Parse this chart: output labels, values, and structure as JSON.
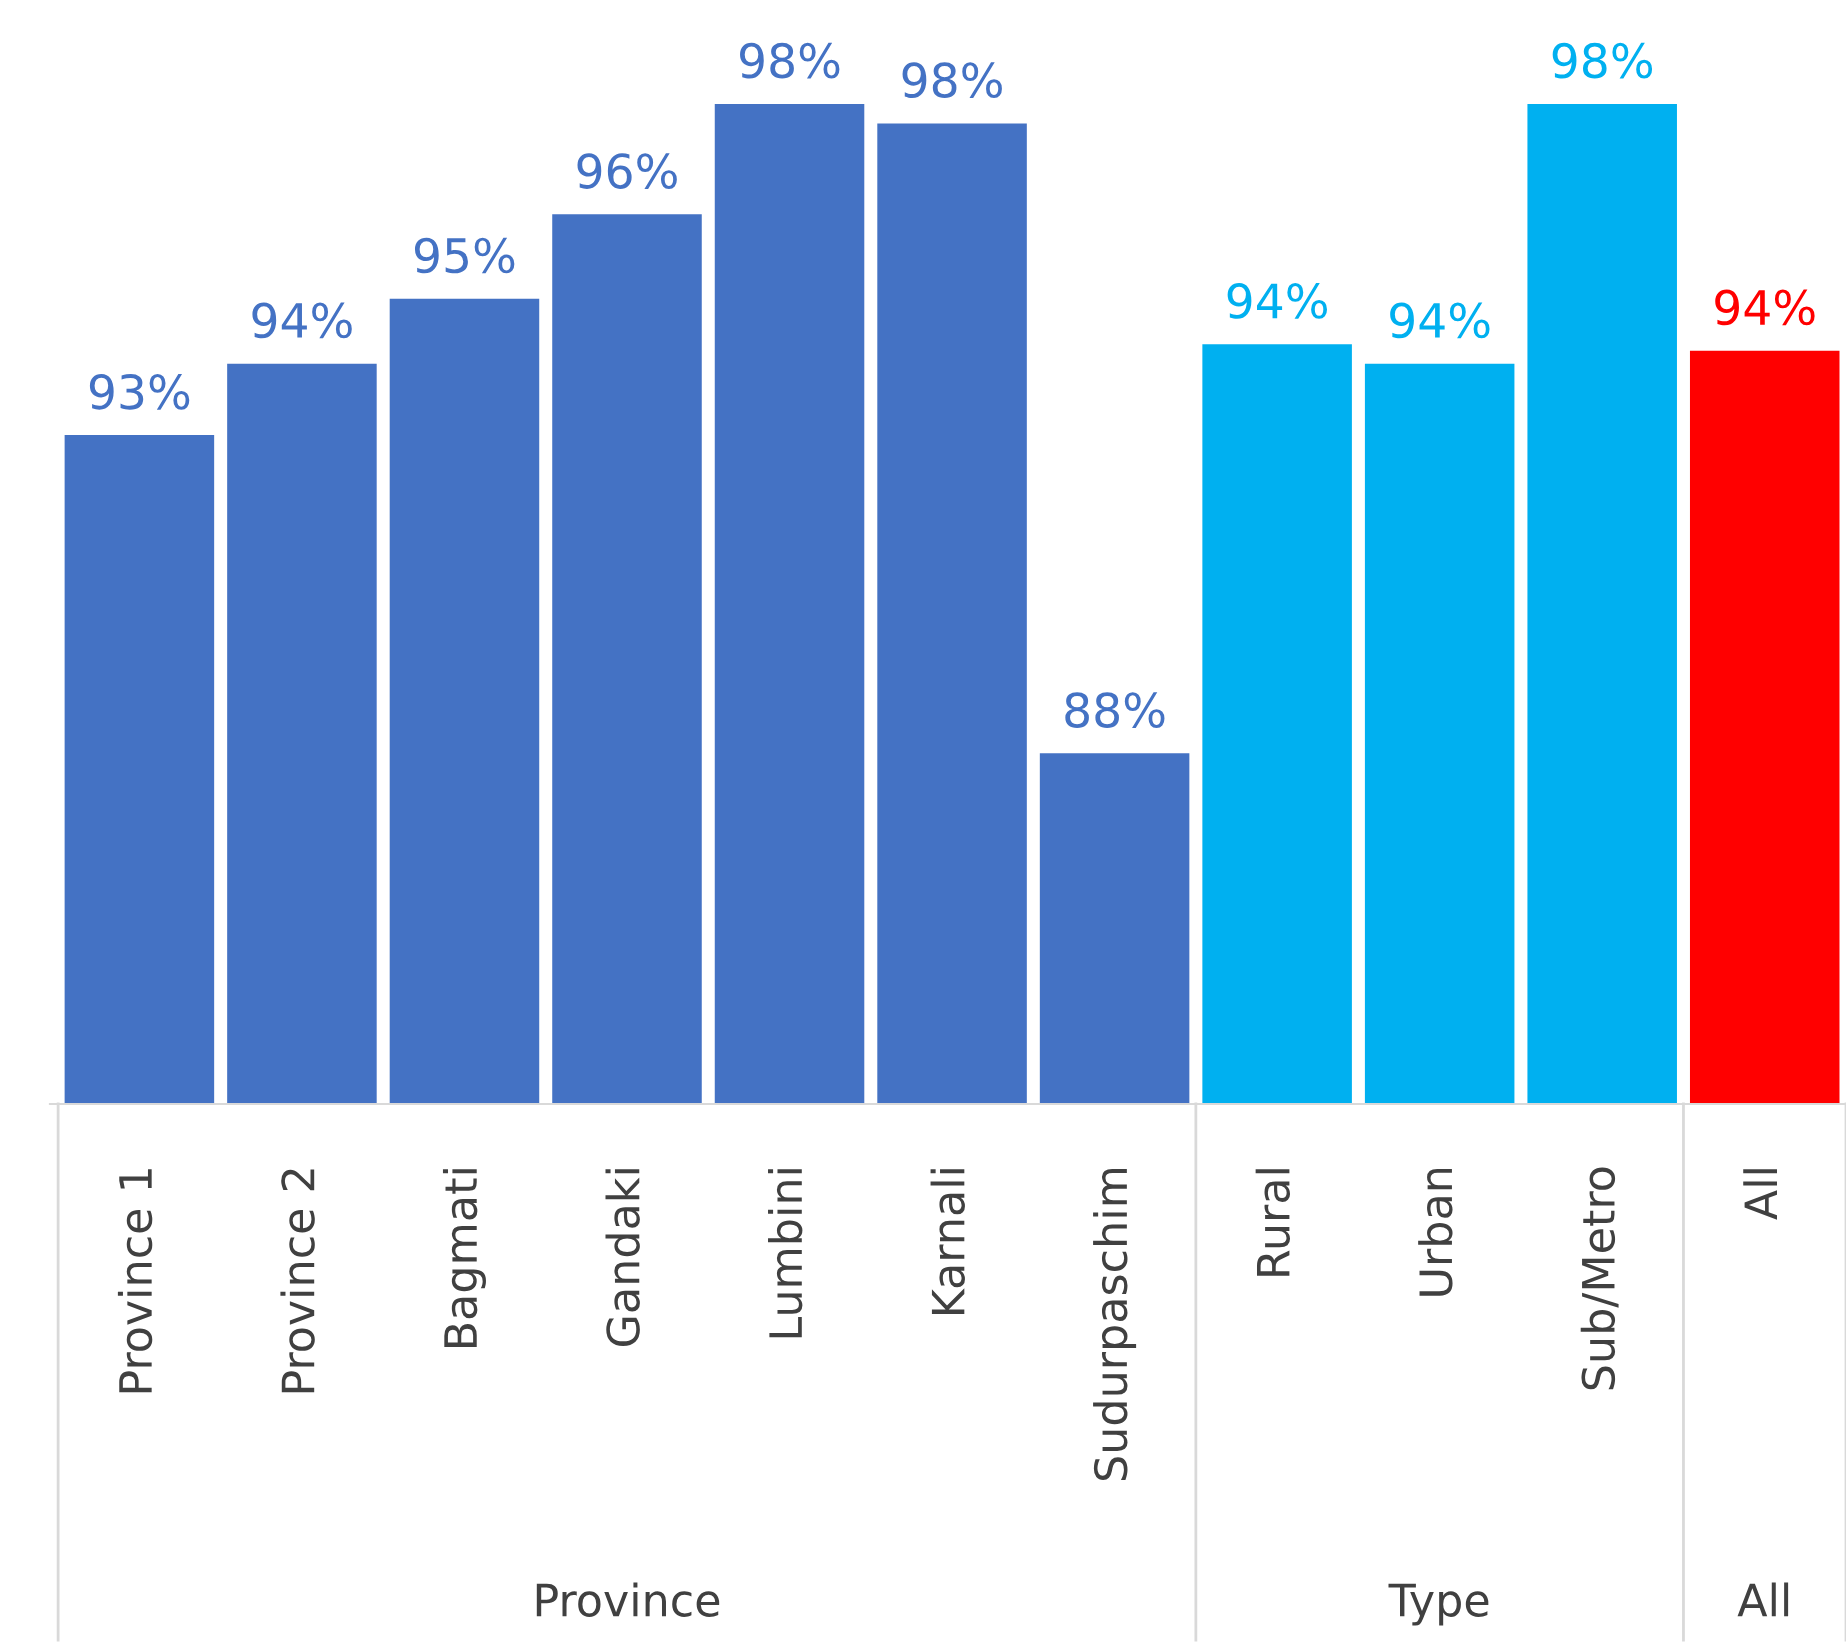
{
  "chart_data": {
    "type": "bar",
    "categories": [
      "Province 1",
      "Province 2",
      "Bagmati",
      "Gandaki",
      "Lumbini",
      "Karnali",
      "Sudurpaschim",
      "Rural",
      "Urban",
      "Sub/Metro",
      "All"
    ],
    "values": [
      92.9,
      94.0,
      95.0,
      96.3,
      98.0,
      97.7,
      88.0,
      94.3,
      94.0,
      98.0,
      94.2
    ],
    "colors": [
      "#4472c4",
      "#4472c4",
      "#4472c4",
      "#4472c4",
      "#4472c4",
      "#4472c4",
      "#4472c4",
      "#00b0f0",
      "#00b0f0",
      "#00b0f0",
      "#ff0000"
    ],
    "value_labels": [
      "93%",
      "94%",
      "95%",
      "96%",
      "98%",
      "98%",
      "88%",
      "94%",
      "94%",
      "98%",
      "94%"
    ],
    "tick_labels": "x",
    "grid": false,
    "legend": false,
    "annotations": [
      "Province",
      "Type",
      "All"
    ]
  }
}
